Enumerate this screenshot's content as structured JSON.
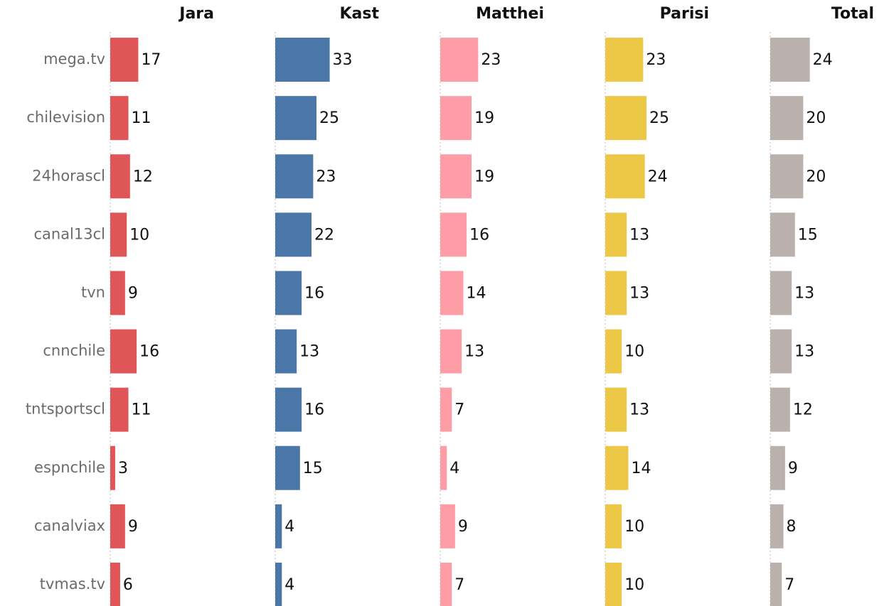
{
  "chart_data": {
    "type": "bar",
    "categories": [
      "mega.tv",
      "chilevision",
      "24horascl",
      "canal13cl",
      "tvn",
      "cnnchile",
      "tntsportscl",
      "espnchile",
      "canalviax",
      "tvmas.tv"
    ],
    "series": [
      {
        "name": "Jara",
        "color": "#e05557",
        "values": [
          17,
          11,
          12,
          10,
          9,
          16,
          11,
          3,
          9,
          6
        ]
      },
      {
        "name": "Kast",
        "color": "#4a76a8",
        "values": [
          33,
          25,
          23,
          22,
          16,
          13,
          16,
          15,
          4,
          4
        ]
      },
      {
        "name": "Matthei",
        "color": "#ff9da6",
        "values": [
          23,
          19,
          19,
          16,
          14,
          13,
          7,
          4,
          9,
          7
        ]
      },
      {
        "name": "Parisi",
        "color": "#ecc846",
        "values": [
          23,
          25,
          24,
          13,
          13,
          10,
          13,
          14,
          10,
          10
        ]
      },
      {
        "name": "Total",
        "color": "#bab0ac",
        "values": [
          24,
          20,
          20,
          15,
          13,
          13,
          12,
          9,
          8,
          7
        ]
      }
    ]
  }
}
